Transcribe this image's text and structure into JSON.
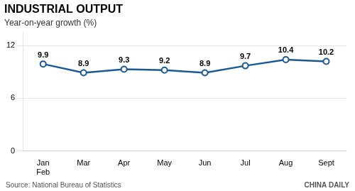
{
  "chart_data": {
    "type": "line",
    "title": "INDUSTRIAL OUTPUT",
    "subtitle": "Year-on-year growth (%)",
    "categories": [
      "Jan\nFeb",
      "Mar",
      "Apr",
      "May",
      "Jun",
      "Jul",
      "Aug",
      "Sept"
    ],
    "values": [
      9.9,
      8.9,
      9.3,
      9.2,
      8.9,
      9.7,
      10.4,
      10.2
    ],
    "color": "#1a5a96",
    "marker": "circle",
    "ylim": [
      0,
      13.5
    ],
    "yticks": [
      0,
      6,
      12
    ],
    "grid": true,
    "data_labels": true,
    "annotations": [
      "Source: National Bureau of Statistics",
      "CHINA DAILY"
    ]
  }
}
